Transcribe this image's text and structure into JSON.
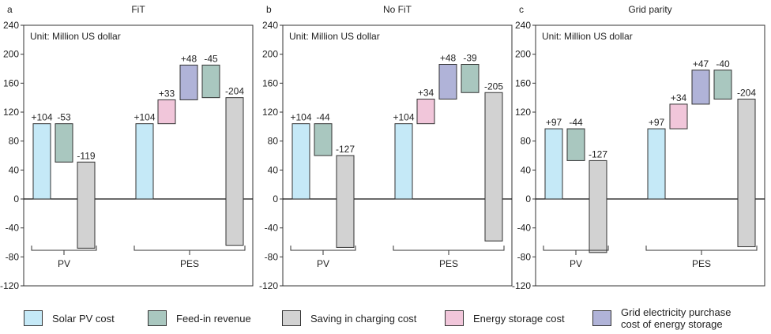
{
  "colors": {
    "solar_pv_cost": "#c5e9f7",
    "feed_in_revenue": "#a9c7bf",
    "saving_in_charging_cost": "#d2d2d2",
    "energy_storage_cost": "#f1c6da",
    "grid_purchase_storage": "#b0b3d8"
  },
  "legend": [
    {
      "key": "solar_pv_cost",
      "label": "Solar PV cost"
    },
    {
      "key": "feed_in_revenue",
      "label": "Feed-in revenue"
    },
    {
      "key": "saving_in_charging_cost",
      "label": "Saving in charging cost"
    },
    {
      "key": "energy_storage_cost",
      "label": "Energy storage cost"
    },
    {
      "key": "grid_purchase_storage",
      "label": "Grid electricity purchase\ncost of energy storage"
    }
  ],
  "chart_data": [
    {
      "type": "bar",
      "panel_letter": "a",
      "title": "FiT",
      "unit_note": "Unit: Million US dollar",
      "ylim": [
        -120,
        240
      ],
      "yticks": [
        -120,
        -80,
        -40,
        0,
        40,
        80,
        120,
        160,
        200,
        240
      ],
      "groups": [
        "PV",
        "PES"
      ],
      "bars": [
        {
          "group": "PV",
          "category": "solar_pv_cost",
          "label": "+104",
          "start": 0,
          "end": 104
        },
        {
          "group": "PV",
          "category": "feed_in_revenue",
          "label": "-53",
          "start": 104,
          "end": 51
        },
        {
          "group": "PV",
          "category": "saving_in_charging_cost",
          "label": "-119",
          "start": 51,
          "end": -68
        },
        {
          "group": "PES",
          "category": "solar_pv_cost",
          "label": "+104",
          "start": 0,
          "end": 104
        },
        {
          "group": "PES",
          "category": "energy_storage_cost",
          "label": "+33",
          "start": 104,
          "end": 137
        },
        {
          "group": "PES",
          "category": "grid_purchase_storage",
          "label": "+48",
          "start": 137,
          "end": 185
        },
        {
          "group": "PES",
          "category": "feed_in_revenue",
          "label": "-45",
          "start": 185,
          "end": 140
        },
        {
          "group": "PES",
          "category": "saving_in_charging_cost",
          "label": "-204",
          "start": 140,
          "end": -64
        }
      ]
    },
    {
      "type": "bar",
      "panel_letter": "b",
      "title": "No FiT",
      "unit_note": "Unit: Million US dollar",
      "ylim": [
        -120,
        240
      ],
      "yticks": [
        -120,
        -80,
        -40,
        0,
        40,
        80,
        120,
        160,
        200,
        240
      ],
      "groups": [
        "PV",
        "PES"
      ],
      "bars": [
        {
          "group": "PV",
          "category": "solar_pv_cost",
          "label": "+104",
          "start": 0,
          "end": 104
        },
        {
          "group": "PV",
          "category": "feed_in_revenue",
          "label": "-44",
          "start": 104,
          "end": 60
        },
        {
          "group": "PV",
          "category": "saving_in_charging_cost",
          "label": "-127",
          "start": 60,
          "end": -67
        },
        {
          "group": "PES",
          "category": "solar_pv_cost",
          "label": "+104",
          "start": 0,
          "end": 104
        },
        {
          "group": "PES",
          "category": "energy_storage_cost",
          "label": "+34",
          "start": 104,
          "end": 138
        },
        {
          "group": "PES",
          "category": "grid_purchase_storage",
          "label": "+48",
          "start": 138,
          "end": 186
        },
        {
          "group": "PES",
          "category": "feed_in_revenue",
          "label": "-39",
          "start": 186,
          "end": 147
        },
        {
          "group": "PES",
          "category": "saving_in_charging_cost",
          "label": "-205",
          "start": 147,
          "end": -58
        }
      ]
    },
    {
      "type": "bar",
      "panel_letter": "c",
      "title": "Grid parity",
      "unit_note": "Unit: Million US dollar",
      "ylim": [
        -120,
        240
      ],
      "yticks": [
        -120,
        -80,
        -40,
        0,
        40,
        80,
        120,
        160,
        200,
        240
      ],
      "groups": [
        "PV",
        "PES"
      ],
      "bars": [
        {
          "group": "PV",
          "category": "solar_pv_cost",
          "label": "+97",
          "start": 0,
          "end": 97
        },
        {
          "group": "PV",
          "category": "feed_in_revenue",
          "label": "-44",
          "start": 97,
          "end": 53
        },
        {
          "group": "PV",
          "category": "saving_in_charging_cost",
          "label": "-127",
          "start": 53,
          "end": -74
        },
        {
          "group": "PES",
          "category": "solar_pv_cost",
          "label": "+97",
          "start": 0,
          "end": 97
        },
        {
          "group": "PES",
          "category": "energy_storage_cost",
          "label": "+34",
          "start": 97,
          "end": 131
        },
        {
          "group": "PES",
          "category": "grid_purchase_storage",
          "label": "+47",
          "start": 131,
          "end": 178
        },
        {
          "group": "PES",
          "category": "feed_in_revenue",
          "label": "-40",
          "start": 178,
          "end": 138
        },
        {
          "group": "PES",
          "category": "saving_in_charging_cost",
          "label": "-204",
          "start": 138,
          "end": -66
        }
      ]
    }
  ]
}
